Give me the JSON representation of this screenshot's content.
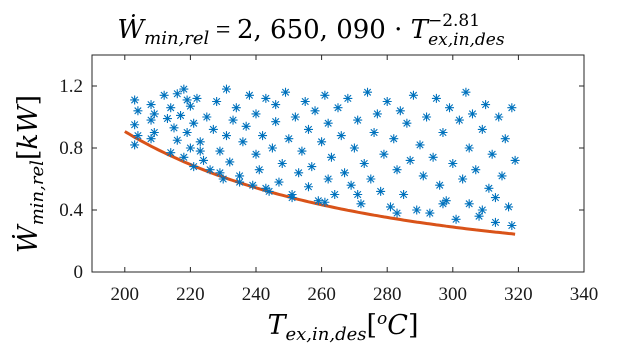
{
  "chart_data": {
    "type": "scatter",
    "title": {
      "lhs_symbol": "Ẇ",
      "lhs_subscript": "min,rel",
      "equals": " = ",
      "coefficient": "2, 650, 090",
      "times": " · ",
      "var_symbol": "T",
      "var_subscript": "ex,in,des",
      "exponent": "−2.81"
    },
    "xlabel": {
      "symbol": "T",
      "subscript": "ex,in,des",
      "open": "[",
      "degree": "o",
      "unit": "C",
      "close": "]"
    },
    "ylabel": {
      "symbol": "Ẇ",
      "subscript": "min,rel",
      "open": "[",
      "unit": "kW",
      "close": "]"
    },
    "xlim": [
      190,
      340
    ],
    "ylim": [
      0,
      1.4
    ],
    "xticks": [
      200,
      220,
      240,
      260,
      280,
      300,
      320,
      340
    ],
    "yticks": [
      0,
      0.4,
      0.8,
      1.2
    ],
    "ytick_labels": [
      "0",
      "0.4",
      "0.8",
      "1.2"
    ],
    "grid": false,
    "series": [
      {
        "kind": "scatter",
        "marker": "asterisk",
        "color": "#0072BD",
        "x": [
          203,
          203,
          203,
          204,
          204,
          208,
          208,
          208,
          209,
          209,
          212,
          213,
          214,
          214,
          215,
          216,
          216,
          217,
          218,
          218,
          219,
          220,
          220,
          221,
          221,
          222,
          223,
          224,
          225,
          226,
          227,
          228,
          229,
          230,
          231,
          231,
          232,
          233,
          234,
          235,
          236,
          237,
          238,
          239,
          240,
          240,
          241,
          242,
          243,
          244,
          245,
          246,
          246,
          247,
          248,
          249,
          250,
          251,
          252,
          253,
          254,
          255,
          256,
          256,
          257,
          258,
          259,
          260,
          261,
          262,
          262,
          263,
          264,
          265,
          266,
          267,
          268,
          269,
          270,
          271,
          272,
          273,
          274,
          275,
          276,
          277,
          278,
          279,
          280,
          281,
          282,
          283,
          284,
          285,
          286,
          287,
          288,
          289,
          290,
          291,
          292,
          293,
          294,
          295,
          296,
          297,
          298,
          299,
          300,
          301,
          302,
          303,
          304,
          305,
          305,
          306,
          307,
          308,
          309,
          310,
          311,
          312,
          313,
          314,
          315,
          316,
          317,
          318,
          318,
          319,
          219,
          223,
          229,
          235,
          243,
          251,
          261,
          271,
          283,
          297,
          309,
          313
        ],
        "y": [
          1.11,
          0.95,
          0.82,
          1.04,
          0.88,
          1.08,
          0.98,
          0.86,
          1.02,
          0.9,
          1.14,
          0.99,
          0.77,
          1.06,
          0.93,
          1.15,
          0.85,
          1.01,
          0.74,
          1.18,
          0.9,
          0.8,
          1.07,
          0.68,
          0.96,
          1.12,
          0.84,
          0.72,
          1.0,
          0.66,
          0.92,
          1.1,
          0.78,
          0.6,
          1.18,
          0.88,
          0.71,
          0.98,
          1.06,
          0.62,
          0.84,
          0.94,
          1.14,
          0.56,
          0.76,
          1.02,
          0.66,
          0.88,
          1.12,
          0.52,
          0.8,
          0.97,
          1.08,
          0.58,
          0.7,
          1.16,
          0.86,
          0.5,
          1.0,
          0.64,
          0.78,
          1.1,
          0.55,
          0.92,
          0.68,
          1.04,
          0.46,
          0.84,
          1.14,
          0.6,
          0.96,
          0.74,
          0.5,
          1.06,
          0.88,
          0.64,
          1.12,
          0.56,
          0.8,
          0.98,
          0.44,
          0.7,
          1.16,
          0.6,
          0.9,
          1.02,
          0.52,
          0.76,
          1.1,
          0.42,
          0.86,
          0.66,
          1.04,
          0.5,
          0.96,
          0.72,
          1.14,
          0.4,
          0.82,
          0.62,
          1.0,
          0.38,
          0.74,
          1.12,
          0.56,
          0.9,
          0.46,
          1.06,
          0.7,
          0.34,
          0.98,
          0.6,
          1.16,
          0.8,
          0.44,
          1.02,
          0.66,
          0.36,
          0.92,
          1.08,
          0.54,
          0.76,
          0.32,
          1.0,
          0.62,
          0.86,
          0.42,
          1.06,
          0.3,
          0.72,
          1.11,
          0.78,
          0.64,
          0.58,
          0.54,
          0.48,
          0.45,
          0.5,
          0.38,
          0.44,
          0.4,
          0.48
        ]
      },
      {
        "kind": "line",
        "color": "#D95319",
        "equation": {
          "coefficient": 2650090,
          "exponent": -2.81
        },
        "x": [
          200,
          210,
          220,
          230,
          240,
          250,
          260,
          270,
          280,
          290,
          300,
          310,
          319
        ],
        "y": [
          0.9,
          0.78,
          0.68,
          0.59,
          0.52,
          0.46,
          0.41,
          0.36,
          0.33,
          0.29,
          0.27,
          0.24,
          0.22
        ]
      }
    ]
  }
}
